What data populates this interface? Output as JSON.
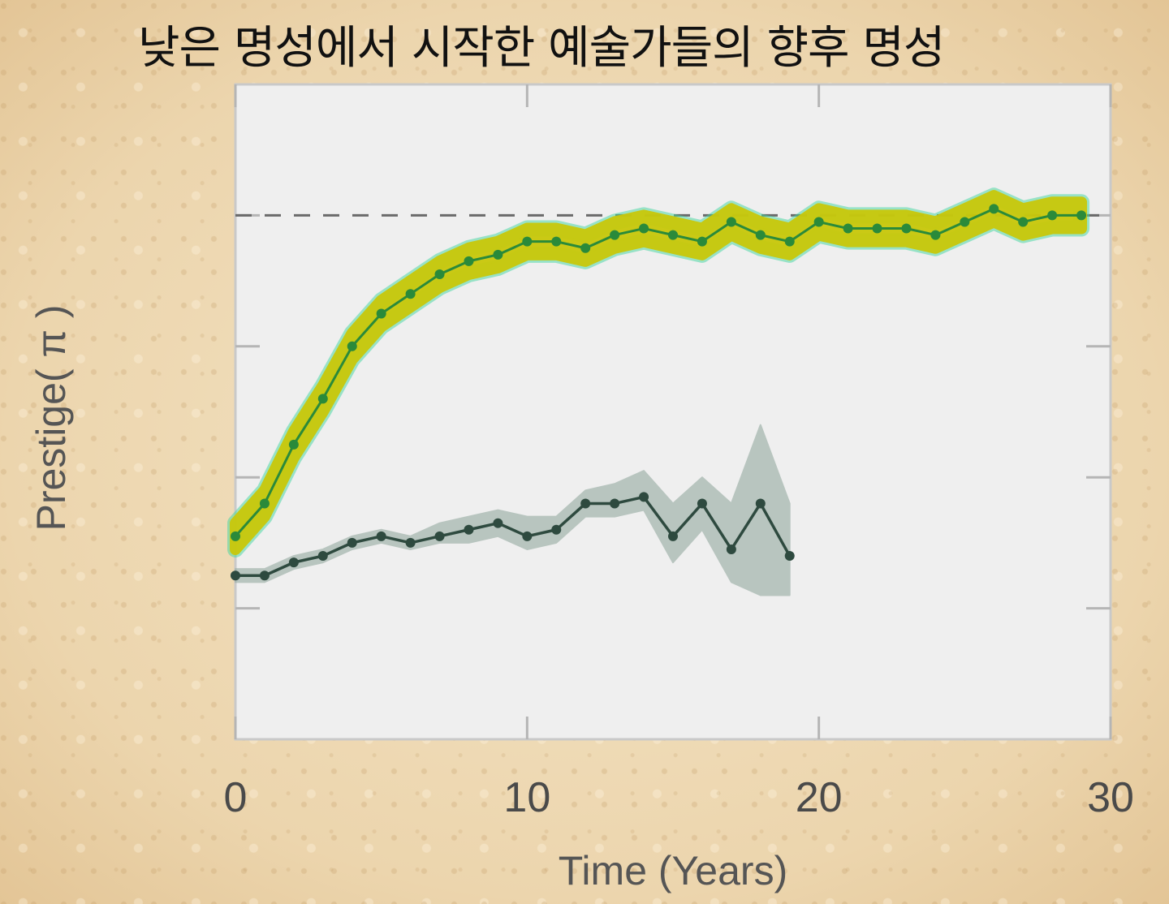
{
  "title": "낮은 명성에서 시작한 예술가들의 향후 명성",
  "chart_data": {
    "type": "line",
    "xlabel": "Time (Years)",
    "ylabel": "Prestige( π )",
    "xlim": [
      0,
      30
    ],
    "ylim": [
      0,
      1
    ],
    "x_ticks": [
      "0",
      "10",
      "20",
      "30"
    ],
    "grid": false,
    "reference_line": {
      "y": 0.8,
      "style": "dashed",
      "color": "#6a6a6a"
    },
    "series": [
      {
        "color_line": "#2a8a3a",
        "color_band": "#c9c80a",
        "color_band_edge": "#3fd6a0",
        "x": [
          0,
          1,
          2,
          3,
          4,
          5,
          6,
          7,
          8,
          9,
          10,
          11,
          12,
          13,
          14,
          15,
          16,
          17,
          18,
          19,
          20,
          21,
          22,
          23,
          24,
          25,
          26,
          27,
          28,
          29
        ],
        "y": [
          0.31,
          0.36,
          0.45,
          0.52,
          0.6,
          0.65,
          0.68,
          0.71,
          0.73,
          0.74,
          0.76,
          0.76,
          0.75,
          0.77,
          0.78,
          0.77,
          0.76,
          0.79,
          0.77,
          0.76,
          0.79,
          0.78,
          0.78,
          0.78,
          0.77,
          0.79,
          0.81,
          0.79,
          0.8,
          0.8
        ],
        "band": 0.02
      },
      {
        "color_line": "#2e4a3f",
        "color_band": "#95aaa0",
        "x": [
          0,
          1,
          2,
          3,
          4,
          5,
          6,
          7,
          8,
          9,
          10,
          11,
          12,
          13,
          14,
          15,
          16,
          17,
          18,
          19
        ],
        "y": [
          0.25,
          0.25,
          0.27,
          0.28,
          0.3,
          0.31,
          0.3,
          0.31,
          0.32,
          0.33,
          0.31,
          0.32,
          0.36,
          0.36,
          0.37,
          0.31,
          0.36,
          0.29,
          0.36,
          0.28
        ],
        "lower": [
          0.24,
          0.24,
          0.26,
          0.27,
          0.29,
          0.3,
          0.29,
          0.3,
          0.3,
          0.31,
          0.29,
          0.3,
          0.34,
          0.34,
          0.35,
          0.27,
          0.32,
          0.24,
          0.22,
          0.22
        ],
        "upper": [
          0.26,
          0.26,
          0.28,
          0.29,
          0.31,
          0.32,
          0.31,
          0.33,
          0.34,
          0.35,
          0.34,
          0.34,
          0.38,
          0.39,
          0.41,
          0.36,
          0.4,
          0.36,
          0.48,
          0.36
        ]
      }
    ]
  }
}
